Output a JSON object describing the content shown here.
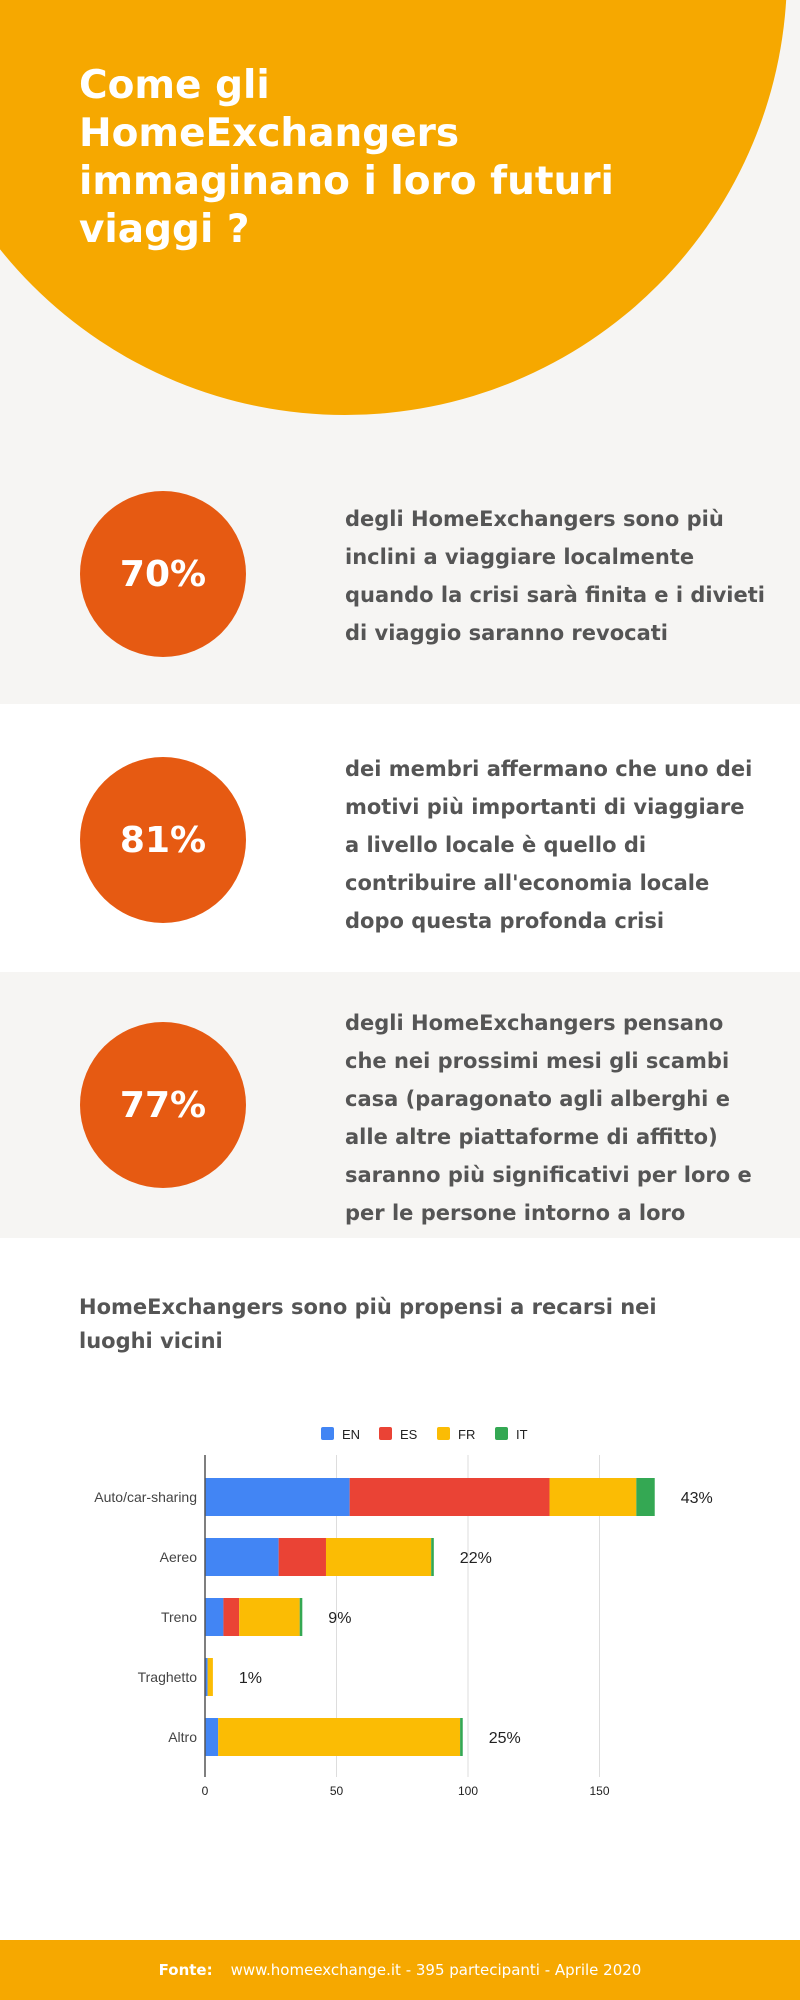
{
  "header": {
    "title": "Come gli HomeExchangers immaginano i loro futuri viaggi ?"
  },
  "stats": [
    {
      "value": "70%",
      "text": "degli HomeExchangers sono più inclini a viaggiare localmente quando la crisi sarà finita e i divieti di viaggio saranno revocati"
    },
    {
      "value": "81%",
      "text": "dei membri affermano che uno dei motivi più importanti di viaggiare a livello locale è quello di contribuire all'economia locale dopo questa profonda crisi"
    },
    {
      "value": "77%",
      "text": "degli HomeExchangers pensano che nei prossimi mesi gli scambi casa (paragonato agli alberghi e alle altre piattaforme di affitto) saranno più significativi per loro e per le persone intorno a loro"
    }
  ],
  "chart_heading": "HomeExchangers sono più propensi a recarsi nei luoghi vicini",
  "chart_data": {
    "type": "bar",
    "orientation": "horizontal",
    "stacked": true,
    "categories": [
      "Auto/car-sharing",
      "Aereo",
      "Treno",
      "Traghetto",
      "Altro"
    ],
    "series": [
      {
        "name": "EN",
        "color": "#4285f4",
        "values": [
          55,
          28,
          7,
          1,
          5
        ]
      },
      {
        "name": "ES",
        "color": "#ea4335",
        "values": [
          76,
          18,
          6,
          0,
          0
        ]
      },
      {
        "name": "FR",
        "color": "#fbbc04",
        "values": [
          33,
          40,
          23,
          2,
          92
        ]
      },
      {
        "name": "IT",
        "color": "#34a853",
        "values": [
          7,
          1,
          1,
          0,
          1
        ]
      }
    ],
    "data_labels": [
      "43%",
      "22%",
      "9%",
      "1%",
      "25%"
    ],
    "xlim": [
      0,
      170
    ],
    "xticks": [
      "0",
      "50",
      "100",
      "150"
    ],
    "grid": true,
    "legend": "top"
  },
  "footer": {
    "label": "Fonte:",
    "text": "www.homeexchange.it - 395 partecipanti - Aprile 2020"
  }
}
